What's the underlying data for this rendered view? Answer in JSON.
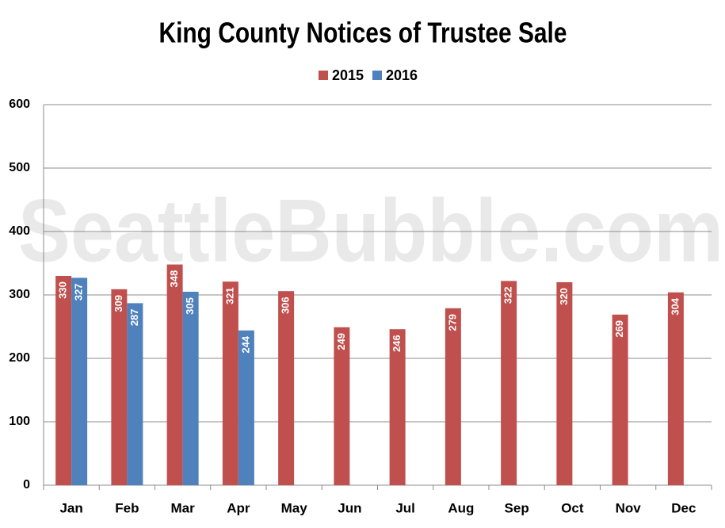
{
  "chart_data": {
    "type": "bar",
    "title": "King County Notices of Trustee Sale",
    "watermark": "SeattleBubble.com",
    "categories": [
      "Jan",
      "Feb",
      "Mar",
      "Apr",
      "May",
      "Jun",
      "Jul",
      "Aug",
      "Sep",
      "Oct",
      "Nov",
      "Dec"
    ],
    "series": [
      {
        "name": "2015",
        "color": "#c0504d",
        "values": [
          330,
          309,
          348,
          321,
          306,
          249,
          246,
          279,
          322,
          320,
          269,
          304
        ]
      },
      {
        "name": "2016",
        "color": "#4f81bd",
        "values": [
          327,
          287,
          305,
          244,
          null,
          null,
          null,
          null,
          null,
          null,
          null,
          null
        ]
      }
    ],
    "ylim": [
      0,
      600
    ],
    "yticks": [
      0,
      100,
      200,
      300,
      400,
      500,
      600
    ],
    "grid": true,
    "legend": "top"
  }
}
